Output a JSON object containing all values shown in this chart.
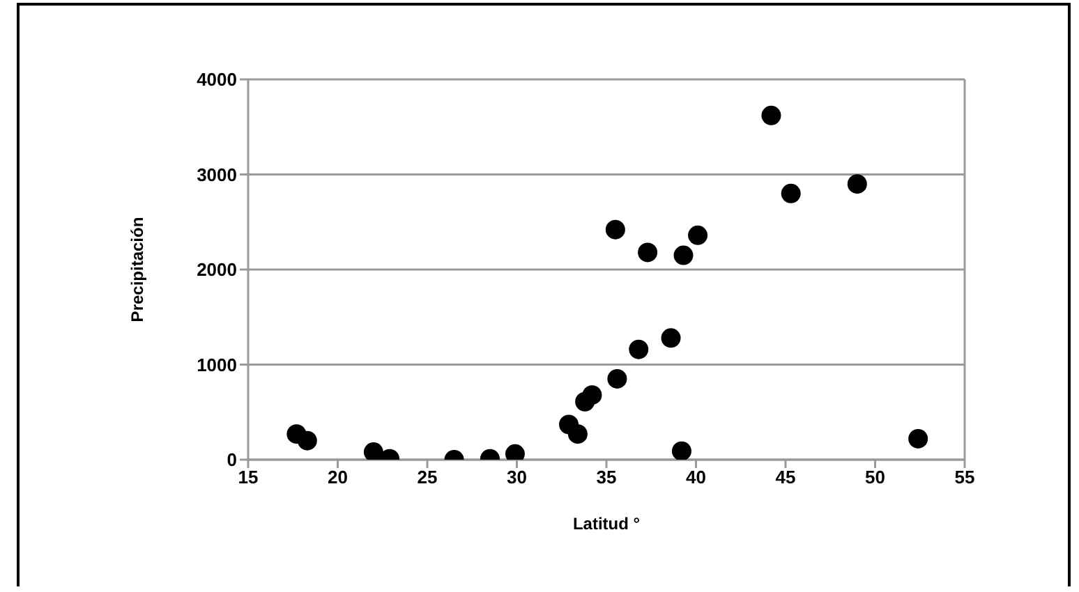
{
  "chart_data": {
    "type": "scatter",
    "xlabel": "Latitud °",
    "ylabel": "Precipitación",
    "x": [
      17.7,
      18.3,
      22.0,
      22.9,
      26.5,
      28.5,
      29.9,
      32.9,
      33.4,
      33.8,
      34.2,
      35.5,
      35.6,
      36.8,
      37.3,
      38.6,
      39.2,
      39.3,
      40.1,
      44.2,
      45.3,
      49.0,
      52.4
    ],
    "values": [
      270,
      200,
      80,
      10,
      0,
      10,
      60,
      370,
      270,
      610,
      680,
      2420,
      850,
      1160,
      2180,
      1280,
      90,
      2150,
      2360,
      3620,
      2800,
      2900,
      220
    ],
    "color": "#000000",
    "marker": "circle",
    "xlim": [
      15,
      55
    ],
    "xticks": [
      15,
      20,
      25,
      30,
      35,
      40,
      45,
      50,
      55
    ],
    "ylim": [
      0,
      4000
    ],
    "yticks": [
      0,
      1000,
      2000,
      3000,
      4000
    ],
    "grid": "y",
    "legend": false
  }
}
